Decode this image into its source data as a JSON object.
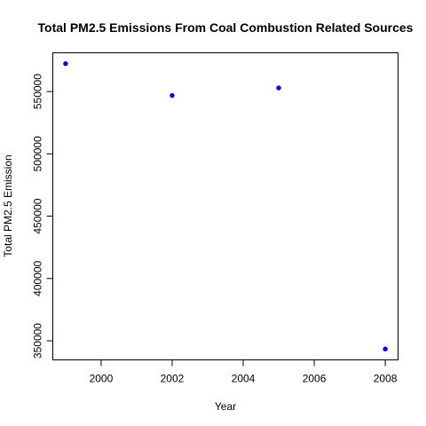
{
  "chart_data": {
    "type": "scatter",
    "title": "Total PM2.5 Emissions From Coal Combustion Related Sources",
    "xlabel": "Year",
    "ylabel": "Total PM2.5 Emission",
    "x": [
      1999,
      2002,
      2005,
      2008
    ],
    "y": [
      572346,
      546789,
      552881,
      343432
    ],
    "xlim": [
      1998.64,
      2008.36
    ],
    "ylim": [
      334716,
      581062
    ],
    "xticks": [
      2000,
      2002,
      2004,
      2006,
      2008
    ],
    "xtick_labels": [
      "2000",
      "2002",
      "2004",
      "2006",
      "2008"
    ],
    "yticks": [
      350000,
      400000,
      450000,
      500000,
      550000
    ],
    "ytick_labels": [
      "350000",
      "400000",
      "450000",
      "500000",
      "550000"
    ],
    "point_color": "#0000ff",
    "grid": false,
    "legend": "none"
  }
}
